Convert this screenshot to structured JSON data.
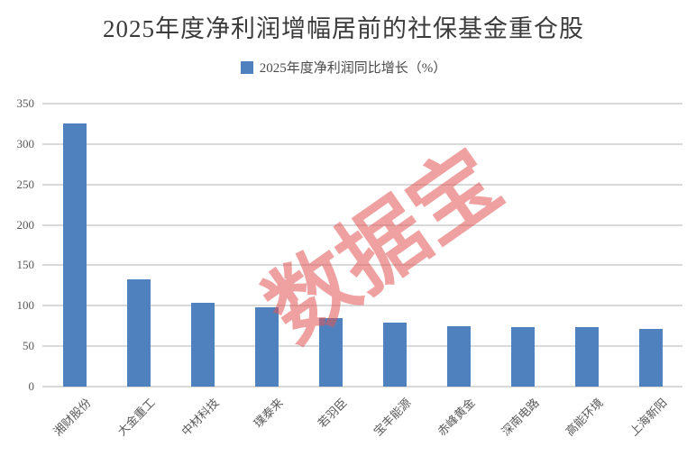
{
  "chart_data": {
    "type": "bar",
    "title": "2025年度净利润增幅居前的社保基金重仓股",
    "legend": "2025年度净利润同比增长（%）",
    "categories": [
      "湘财股份",
      "大金重工",
      "中材科技",
      "璞泰来",
      "若羽臣",
      "宝丰能源",
      "赤峰黄金",
      "深南电路",
      "高能环境",
      "上海新阳"
    ],
    "values": [
      325,
      133,
      104,
      98,
      85,
      79,
      75,
      74,
      74,
      71
    ],
    "xlabel": "",
    "ylabel": "",
    "ylim": [
      0,
      350
    ],
    "yticks": [
      0,
      50,
      100,
      150,
      200,
      250,
      300,
      350
    ],
    "grid": true,
    "legend_position": "top-center",
    "bar_color": "#4E81BD"
  },
  "watermark": {
    "text": "数据宝",
    "color": "#E25555"
  },
  "colors": {
    "gridline": "#D9D9D9",
    "tick_text": "#595959",
    "title_text": "#3B3B3B"
  }
}
